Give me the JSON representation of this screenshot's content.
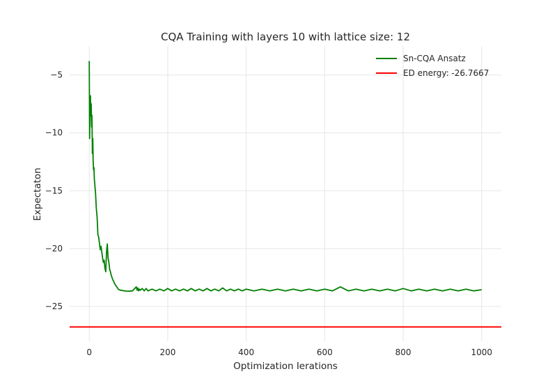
{
  "chart_data": {
    "type": "line",
    "title": "CQA Training with layers 10 with lattice size: 12",
    "xlabel": "Optimization Ierations",
    "ylabel": "Expectaton",
    "xlim": [
      -50,
      1050
    ],
    "ylim": [
      -28.0,
      -2.5
    ],
    "xticks": [
      0,
      200,
      400,
      600,
      800,
      1000
    ],
    "yticks": [
      -5,
      -10,
      -15,
      -20,
      -25
    ],
    "grid": true,
    "legend": {
      "position": "top-right"
    },
    "series": [
      {
        "name": "Sn-CQA Ansatz",
        "color": "#008000",
        "x": [
          0,
          1,
          2,
          3,
          4,
          5,
          6,
          7,
          8,
          9,
          10,
          11,
          12,
          13,
          14,
          15,
          16,
          18,
          20,
          22,
          24,
          26,
          28,
          30,
          32,
          34,
          36,
          38,
          40,
          42,
          44,
          46,
          48,
          50,
          52,
          54,
          56,
          58,
          60,
          62,
          64,
          66,
          68,
          70,
          72,
          74,
          76,
          80,
          85,
          90,
          95,
          100,
          110,
          120,
          122,
          124,
          126,
          128,
          130,
          135,
          140,
          145,
          150,
          160,
          170,
          180,
          190,
          200,
          210,
          220,
          230,
          240,
          250,
          260,
          270,
          280,
          290,
          300,
          310,
          320,
          330,
          340,
          350,
          360,
          370,
          380,
          390,
          400,
          420,
          440,
          460,
          480,
          500,
          520,
          540,
          560,
          580,
          600,
          620,
          640,
          660,
          680,
          700,
          720,
          740,
          760,
          780,
          800,
          820,
          840,
          860,
          880,
          900,
          920,
          940,
          960,
          980,
          1000
        ],
        "y": [
          -3.8,
          -10.5,
          -8.0,
          -6.8,
          -8.5,
          -7.5,
          -9.5,
          -8.5,
          -11.8,
          -10.5,
          -12.5,
          -13.2,
          -13.0,
          -14.0,
          -14.4,
          -14.8,
          -15.2,
          -16.5,
          -17.3,
          -18.8,
          -19.0,
          -19.5,
          -20.1,
          -19.8,
          -20.3,
          -20.8,
          -21.2,
          -21.0,
          -21.7,
          -22.0,
          -20.3,
          -19.6,
          -20.8,
          -21.2,
          -21.8,
          -22.0,
          -22.3,
          -22.5,
          -22.7,
          -22.8,
          -23.0,
          -23.1,
          -23.2,
          -23.3,
          -23.4,
          -23.5,
          -23.55,
          -23.6,
          -23.62,
          -23.65,
          -23.67,
          -23.68,
          -23.65,
          -23.3,
          -23.6,
          -23.4,
          -23.65,
          -23.5,
          -23.6,
          -23.45,
          -23.65,
          -23.45,
          -23.65,
          -23.5,
          -23.65,
          -23.5,
          -23.65,
          -23.45,
          -23.65,
          -23.5,
          -23.65,
          -23.5,
          -23.65,
          -23.45,
          -23.65,
          -23.5,
          -23.65,
          -23.45,
          -23.65,
          -23.5,
          -23.65,
          -23.4,
          -23.65,
          -23.5,
          -23.65,
          -23.5,
          -23.65,
          -23.5,
          -23.65,
          -23.5,
          -23.65,
          -23.5,
          -23.65,
          -23.5,
          -23.65,
          -23.5,
          -23.65,
          -23.5,
          -23.65,
          -23.3,
          -23.65,
          -23.5,
          -23.65,
          -23.5,
          -23.65,
          -23.5,
          -23.65,
          -23.45,
          -23.65,
          -23.5,
          -23.65,
          -23.5,
          -23.65,
          -23.5,
          -23.65,
          -23.5,
          -23.65,
          -23.55
        ]
      },
      {
        "name": "ED energy: -26.7667",
        "color": "#ff0000",
        "hline": -26.7667
      }
    ]
  }
}
